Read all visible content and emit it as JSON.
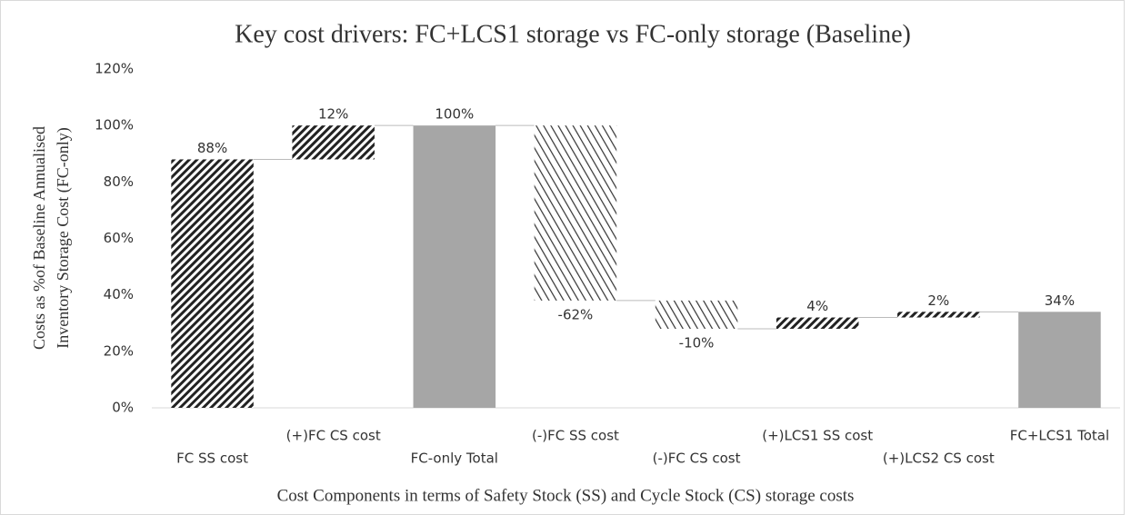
{
  "chart_data": {
    "type": "waterfall",
    "title": "Key cost drivers: FC+LCS1  storage vs FC-only storage (Baseline)",
    "y_label": [
      "Costs as %of Baseline Annualised",
      "Inventory Storage Cost (FC-only)"
    ],
    "x_label": "Cost Components in terms of Safety Stock (SS) and Cycle Stock (CS) storage costs",
    "categories": [
      "FC SS cost",
      "(+)FC CS cost",
      "FC-only Total",
      "(-)FC SS cost",
      "(-)FC CS cost",
      "(+)LCS1 SS cost",
      "(+)LCS2 CS cost",
      "FC+LCS1 Total"
    ],
    "values": [
      88,
      12,
      100,
      -62,
      -10,
      4,
      2,
      34
    ],
    "value_labels": [
      "88%",
      "12%",
      "100%",
      "-62%",
      "-10%",
      "4%",
      "2%",
      "34%"
    ],
    "measure": [
      "relative",
      "relative",
      "total",
      "relative",
      "relative",
      "relative",
      "relative",
      "total"
    ],
    "patterns": [
      "dense-forward",
      "dense-forward",
      "solid",
      "light-backward",
      "light-backward",
      "dense-forward",
      "dense-forward",
      "solid"
    ],
    "color": "#a6a6a6",
    "ylim": [
      0,
      120
    ],
    "yticks": [
      {
        "value": 0,
        "label": "0%"
      },
      {
        "value": 20,
        "label": "20%"
      },
      {
        "value": 40,
        "label": "40%"
      },
      {
        "value": 60,
        "label": "60%"
      },
      {
        "value": 80,
        "label": "80%"
      },
      {
        "value": 100,
        "label": "100%"
      },
      {
        "value": 120,
        "label": "120%"
      }
    ],
    "grid": false
  }
}
